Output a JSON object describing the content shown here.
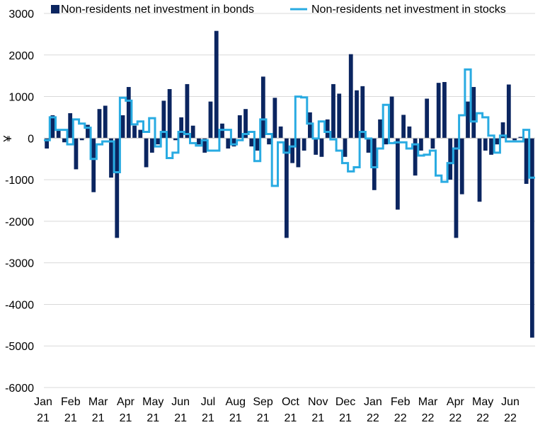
{
  "chart_data": {
    "type": "bar",
    "ylabel": "¥",
    "ylim": [
      -6000,
      3000
    ],
    "yticks": [
      3000,
      2000,
      1000,
      0,
      -1000,
      -2000,
      -3000,
      -4000,
      -5000,
      -6000
    ],
    "xlabels": [
      [
        "Jan",
        "21"
      ],
      [
        "Feb",
        "21"
      ],
      [
        "Mar",
        "21"
      ],
      [
        "Apr",
        "21"
      ],
      [
        "May",
        "21"
      ],
      [
        "Jun",
        "21"
      ],
      [
        "Jul",
        "21"
      ],
      [
        "Aug",
        "21"
      ],
      [
        "Sep",
        "21"
      ],
      [
        "Oct",
        "21"
      ],
      [
        "Nov",
        "21"
      ],
      [
        "Dec",
        "21"
      ],
      [
        "Jan",
        "22"
      ],
      [
        "Feb",
        "22"
      ],
      [
        "Mar",
        "22"
      ],
      [
        "Apr",
        "22"
      ],
      [
        "May",
        "22"
      ],
      [
        "Jun",
        "22"
      ]
    ],
    "grid": true,
    "legend_position": "top",
    "series": [
      {
        "name": "Non-residents net investment in bonds",
        "kind": "bar",
        "color": "#0b2560",
        "values": [
          -250,
          550,
          200,
          -100,
          600,
          -750,
          -50,
          320,
          -1300,
          700,
          780,
          -950,
          -2400,
          550,
          1230,
          300,
          200,
          -700,
          -350,
          -150,
          900,
          1180,
          -50,
          500,
          1300,
          300,
          -150,
          -350,
          880,
          2580,
          350,
          -250,
          -200,
          550,
          700,
          -200,
          -300,
          1480,
          -150,
          970,
          280,
          -2400,
          -600,
          -700,
          -300,
          620,
          -400,
          -450,
          450,
          1300,
          1070,
          -450,
          2020,
          1150,
          1250,
          -350,
          -1250,
          450,
          -150,
          1000,
          -1720,
          560,
          280,
          -900,
          -300,
          950,
          -250,
          1330,
          1350,
          -1000,
          -2400,
          -1350,
          880,
          1230,
          -1530,
          -300,
          -400,
          -150,
          380,
          1290,
          -50,
          30,
          -1100,
          -4800
        ]
      },
      {
        "name": "Non-residents net investment in stocks",
        "kind": "line",
        "color": "#29abe2",
        "values": [
          -50,
          500,
          200,
          200,
          -150,
          450,
          350,
          250,
          -500,
          -150,
          -80,
          -80,
          -820,
          970,
          900,
          330,
          400,
          150,
          480,
          -200,
          150,
          -480,
          -350,
          150,
          100,
          -120,
          -180,
          -50,
          -300,
          -300,
          200,
          200,
          -150,
          -50,
          100,
          150,
          -550,
          450,
          100,
          -1150,
          -100,
          -350,
          -200,
          1000,
          980,
          350,
          -10,
          400,
          150,
          -30,
          -300,
          -600,
          -800,
          -700,
          150,
          -10,
          -700,
          -250,
          800,
          -120,
          -100,
          -100,
          -250,
          -150,
          -420,
          -400,
          -300,
          -900,
          -1050,
          -600,
          -250,
          550,
          1650,
          400,
          600,
          500,
          60,
          -350,
          60,
          -80,
          -80,
          -80,
          200,
          -950
        ]
      }
    ]
  }
}
